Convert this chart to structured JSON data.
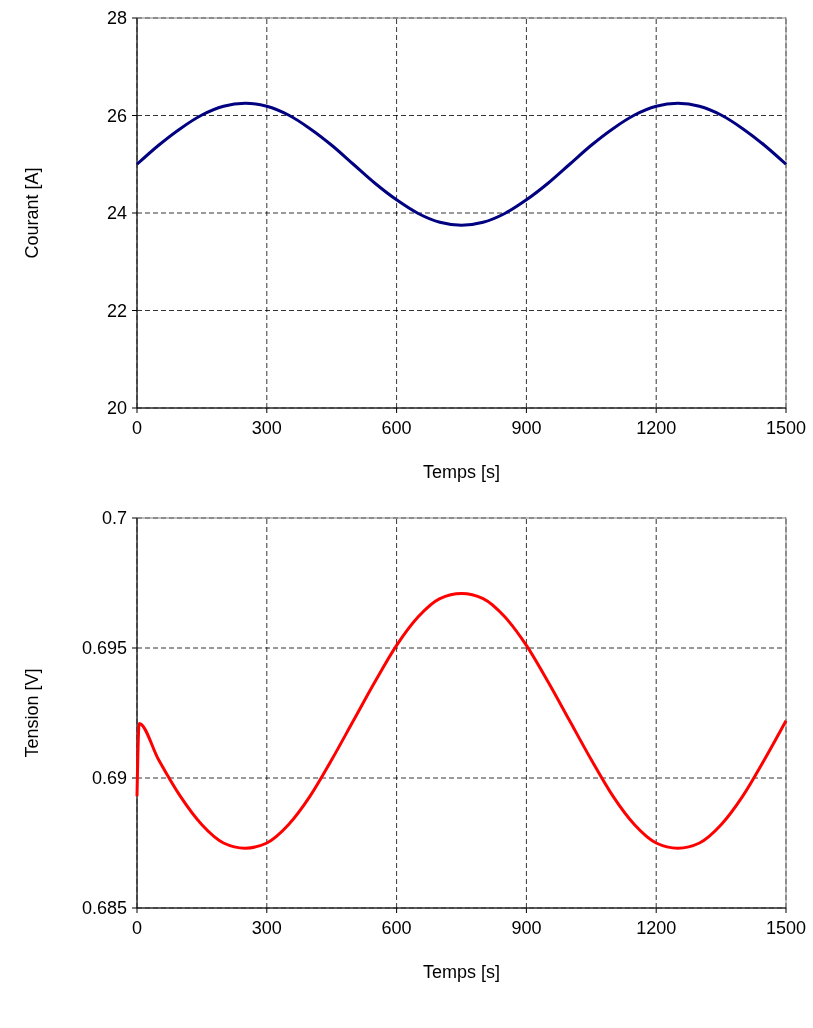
{
  "chart_data": [
    {
      "type": "line",
      "xlabel": "Temps [s]",
      "ylabel": "Courant [A]",
      "xlim": [
        0,
        1500
      ],
      "ylim": [
        20,
        28
      ],
      "xticks": [
        0,
        300,
        600,
        900,
        1200,
        1500
      ],
      "yticks": [
        20,
        22,
        24,
        26,
        28
      ],
      "grid": true,
      "series": [
        {
          "color": "#000080",
          "x": [
            0,
            50,
            100,
            150,
            200,
            250,
            300,
            350,
            400,
            450,
            500,
            550,
            600,
            650,
            700,
            750,
            800,
            850,
            900,
            950,
            1000,
            1050,
            1100,
            1150,
            1200,
            1250,
            1300,
            1350,
            1400,
            1450,
            1500
          ],
          "values": [
            25,
            25.39,
            25.73,
            26.01,
            26.19,
            26.25,
            26.19,
            26.01,
            25.73,
            25.39,
            25,
            24.61,
            24.27,
            23.99,
            23.81,
            23.75,
            23.81,
            23.99,
            24.27,
            24.61,
            25,
            25.39,
            25.73,
            26.01,
            26.19,
            26.25,
            26.19,
            26.01,
            25.73,
            25.39,
            25
          ]
        }
      ]
    },
    {
      "type": "line",
      "xlabel": "Temps [s]",
      "ylabel": "Tension  [V]",
      "xlim": [
        0,
        1500
      ],
      "ylim": [
        0.685,
        0.7
      ],
      "xticks": [
        0,
        300,
        600,
        900,
        1200,
        1500
      ],
      "yticks": [
        0.685,
        0.69,
        0.695,
        0.7
      ],
      "grid": true,
      "series": [
        {
          "color": "#ff0000",
          "x": [
            0,
            5,
            50,
            100,
            150,
            200,
            250,
            300,
            350,
            400,
            450,
            500,
            550,
            600,
            650,
            700,
            750,
            800,
            850,
            900,
            950,
            1000,
            1050,
            1100,
            1150,
            1200,
            1250,
            1300,
            1350,
            1400,
            1450,
            1500
          ],
          "values": [
            0.6893,
            0.6921,
            0.6907,
            0.6893,
            0.6882,
            0.6875,
            0.6873,
            0.6875,
            0.6882,
            0.6893,
            0.6907,
            0.6922,
            0.6937,
            0.6951,
            0.6962,
            0.6969,
            0.6971,
            0.6969,
            0.6962,
            0.6951,
            0.6937,
            0.6922,
            0.6907,
            0.6893,
            0.6882,
            0.6875,
            0.6873,
            0.6875,
            0.6882,
            0.6893,
            0.6907,
            0.6922
          ]
        }
      ]
    }
  ]
}
